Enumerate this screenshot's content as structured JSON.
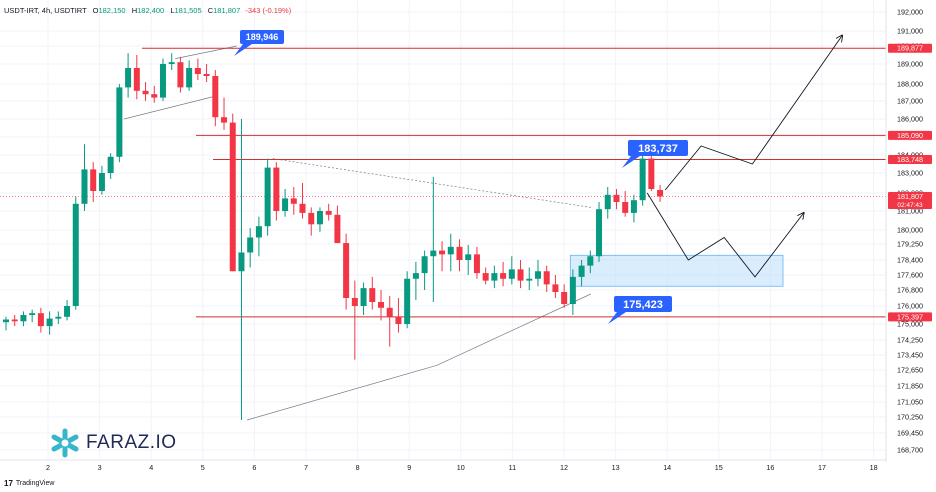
{
  "header": {
    "symbol": "USDT-IRT, 4h, USDTIRT",
    "open_label": "O",
    "open": "182,150",
    "high_label": "H",
    "high": "182,400",
    "low_label": "L",
    "low": "181,505",
    "close_label": "C",
    "close": "181,807",
    "change": "-343 (-0.19%)"
  },
  "brand": {
    "logo_text": "FARAZ.IO",
    "footer": "TradingView",
    "footer_mark": "17"
  },
  "colors": {
    "up": "#089981",
    "down": "#f23645",
    "line": "#d32f2f",
    "callout": "#2962ff",
    "zone": "#bbdefb"
  },
  "chart_data": {
    "type": "candlestick",
    "timeframe": "4h",
    "x_tick_labels": [
      "2",
      "3",
      "4",
      "5",
      "6",
      "7",
      "8",
      "9",
      "10",
      "11",
      "12",
      "13",
      "14",
      "15",
      "16",
      "17",
      "18"
    ],
    "y_tick_labels": [
      "192,000",
      "191,000",
      "190,000",
      "189,000",
      "188,000",
      "187,000",
      "186,000",
      "185,000",
      "184,000",
      "183,000",
      "182,000",
      "181,000",
      "180,000",
      "179,250",
      "178,400",
      "177,600",
      "176,800",
      "176,000",
      "175,000",
      "174,250",
      "173,450",
      "172,650",
      "171,850",
      "171,050",
      "170,250",
      "169,450",
      "168,700"
    ],
    "price_badges": [
      "189,877",
      "185,090",
      "183,748",
      "181,807",
      "175,397"
    ],
    "countdown": "02:47:43",
    "horizontal_levels": [
      189877,
      185090,
      183748,
      175397
    ],
    "callouts": [
      {
        "text": "189,946",
        "value": 189946
      },
      {
        "text": "183,737",
        "value": 183737
      },
      {
        "text": "175,423",
        "value": 175423
      }
    ],
    "zone": {
      "from_day": 11.0,
      "to_day": 16.25,
      "low": 177000,
      "high": 178650
    },
    "trendlines": [
      {
        "from": [
          4.7,
          170100
        ],
        "to": [
          8.4,
          172900
        ]
      },
      {
        "from": [
          8.4,
          172900
        ],
        "to": [
          11.4,
          176600
        ]
      },
      {
        "from": [
          5.2,
          183800
        ],
        "to": [
          11.4,
          181200
        ]
      },
      {
        "from": [
          3.3,
          189300
        ],
        "to": [
          4.5,
          190000
        ]
      },
      {
        "from": [
          2.3,
          186000
        ],
        "to": [
          4.1,
          187300
        ]
      }
    ],
    "scenario_paths": [
      [
        [
          12.85,
          182150
        ],
        [
          13.55,
          184500
        ],
        [
          14.55,
          183500
        ],
        [
          16.3,
          190700
        ]
      ],
      [
        [
          12.5,
          182000
        ],
        [
          13.3,
          178400
        ],
        [
          14.0,
          179600
        ],
        [
          14.6,
          177500
        ],
        [
          15.55,
          180900
        ]
      ]
    ],
    "candles": [
      {
        "t": 0.0,
        "o": 175100,
        "h": 175400,
        "l": 174700,
        "c": 175250
      },
      {
        "t": 0.17,
        "o": 175250,
        "h": 175500,
        "l": 174900,
        "c": 175150
      },
      {
        "t": 0.34,
        "o": 175150,
        "h": 175700,
        "l": 174900,
        "c": 175500
      },
      {
        "t": 0.51,
        "o": 175500,
        "h": 175800,
        "l": 175100,
        "c": 175600
      },
      {
        "t": 0.68,
        "o": 175600,
        "h": 175900,
        "l": 174600,
        "c": 174900
      },
      {
        "t": 0.85,
        "o": 174900,
        "h": 175700,
        "l": 174500,
        "c": 175300
      },
      {
        "t": 1.02,
        "o": 175300,
        "h": 175700,
        "l": 175000,
        "c": 175400
      },
      {
        "t": 1.19,
        "o": 175400,
        "h": 176300,
        "l": 175200,
        "c": 176000
      },
      {
        "t": 1.36,
        "o": 176000,
        "h": 181800,
        "l": 175800,
        "c": 181400
      },
      {
        "t": 1.53,
        "o": 181400,
        "h": 184600,
        "l": 181000,
        "c": 183200
      },
      {
        "t": 1.7,
        "o": 183200,
        "h": 183600,
        "l": 181500,
        "c": 182100
      },
      {
        "t": 1.87,
        "o": 182100,
        "h": 183400,
        "l": 181900,
        "c": 183000
      },
      {
        "t": 2.04,
        "o": 183000,
        "h": 184100,
        "l": 182700,
        "c": 183900
      },
      {
        "t": 2.21,
        "o": 183900,
        "h": 188000,
        "l": 183600,
        "c": 187800
      },
      {
        "t": 2.38,
        "o": 187800,
        "h": 189600,
        "l": 187200,
        "c": 188800
      },
      {
        "t": 2.55,
        "o": 188800,
        "h": 189500,
        "l": 187100,
        "c": 187600
      },
      {
        "t": 2.72,
        "o": 187600,
        "h": 188100,
        "l": 187000,
        "c": 187400
      },
      {
        "t": 2.89,
        "o": 187400,
        "h": 187900,
        "l": 186900,
        "c": 187200
      },
      {
        "t": 3.06,
        "o": 187200,
        "h": 189300,
        "l": 187000,
        "c": 189000
      },
      {
        "t": 3.23,
        "o": 189000,
        "h": 189600,
        "l": 188700,
        "c": 189100
      },
      {
        "t": 3.4,
        "o": 189100,
        "h": 189400,
        "l": 187500,
        "c": 187800
      },
      {
        "t": 3.57,
        "o": 187800,
        "h": 189200,
        "l": 187600,
        "c": 188800
      },
      {
        "t": 3.74,
        "o": 188800,
        "h": 189300,
        "l": 188200,
        "c": 188500
      },
      {
        "t": 3.91,
        "o": 188500,
        "h": 189000,
        "l": 188100,
        "c": 188400
      },
      {
        "t": 4.08,
        "o": 188400,
        "h": 188700,
        "l": 185600,
        "c": 186100
      },
      {
        "t": 4.25,
        "o": 186100,
        "h": 187200,
        "l": 185400,
        "c": 185800
      },
      {
        "t": 4.42,
        "o": 185800,
        "h": 186300,
        "l": 177800,
        "c": 177800
      },
      {
        "t": 4.59,
        "o": 177800,
        "h": 186000,
        "l": 170100,
        "c": 178800
      },
      {
        "t": 4.76,
        "o": 178800,
        "h": 180100,
        "l": 178000,
        "c": 179600
      },
      {
        "t": 4.93,
        "o": 179600,
        "h": 180700,
        "l": 178600,
        "c": 180200
      },
      {
        "t": 5.1,
        "o": 180200,
        "h": 183800,
        "l": 179700,
        "c": 183300
      },
      {
        "t": 5.27,
        "o": 183300,
        "h": 183600,
        "l": 180500,
        "c": 181000
      },
      {
        "t": 5.44,
        "o": 181000,
        "h": 182200,
        "l": 180700,
        "c": 181700
      },
      {
        "t": 5.61,
        "o": 181700,
        "h": 182300,
        "l": 180800,
        "c": 181400
      },
      {
        "t": 5.78,
        "o": 181400,
        "h": 182500,
        "l": 180600,
        "c": 180900
      },
      {
        "t": 5.95,
        "o": 180900,
        "h": 181200,
        "l": 179700,
        "c": 180300
      },
      {
        "t": 6.12,
        "o": 180300,
        "h": 181200,
        "l": 179900,
        "c": 181000
      },
      {
        "t": 6.29,
        "o": 181000,
        "h": 181400,
        "l": 180500,
        "c": 180800
      },
      {
        "t": 6.46,
        "o": 180800,
        "h": 181300,
        "l": 179300,
        "c": 179300
      },
      {
        "t": 6.63,
        "o": 179300,
        "h": 179800,
        "l": 175800,
        "c": 176400
      },
      {
        "t": 6.8,
        "o": 176400,
        "h": 177300,
        "l": 173200,
        "c": 176000
      },
      {
        "t": 6.97,
        "o": 176000,
        "h": 177200,
        "l": 175500,
        "c": 176900
      },
      {
        "t": 7.14,
        "o": 176900,
        "h": 177500,
        "l": 175800,
        "c": 176200
      },
      {
        "t": 7.31,
        "o": 176200,
        "h": 176800,
        "l": 175200,
        "c": 175900
      },
      {
        "t": 7.48,
        "o": 175900,
        "h": 176500,
        "l": 173900,
        "c": 175400
      },
      {
        "t": 7.65,
        "o": 175400,
        "h": 176400,
        "l": 174600,
        "c": 175000
      },
      {
        "t": 7.82,
        "o": 175000,
        "h": 177800,
        "l": 174800,
        "c": 177400
      },
      {
        "t": 7.99,
        "o": 177400,
        "h": 178300,
        "l": 176300,
        "c": 177700
      },
      {
        "t": 8.16,
        "o": 177700,
        "h": 178900,
        "l": 176800,
        "c": 178600
      },
      {
        "t": 8.33,
        "o": 178600,
        "h": 182800,
        "l": 176200,
        "c": 178900
      },
      {
        "t": 8.5,
        "o": 178900,
        "h": 179400,
        "l": 177800,
        "c": 178700
      },
      {
        "t": 8.67,
        "o": 178700,
        "h": 179800,
        "l": 177800,
        "c": 179100
      },
      {
        "t": 8.84,
        "o": 179100,
        "h": 179500,
        "l": 177800,
        "c": 178400
      },
      {
        "t": 9.01,
        "o": 178400,
        "h": 179200,
        "l": 177600,
        "c": 178700
      },
      {
        "t": 9.18,
        "o": 178700,
        "h": 179100,
        "l": 177400,
        "c": 177700
      },
      {
        "t": 9.35,
        "o": 177700,
        "h": 178000,
        "l": 177100,
        "c": 177300
      },
      {
        "t": 9.52,
        "o": 177300,
        "h": 178100,
        "l": 176900,
        "c": 177700
      },
      {
        "t": 9.69,
        "o": 177700,
        "h": 178300,
        "l": 177000,
        "c": 177400
      },
      {
        "t": 9.86,
        "o": 177400,
        "h": 178600,
        "l": 177100,
        "c": 177900
      },
      {
        "t": 10.03,
        "o": 177900,
        "h": 178400,
        "l": 176900,
        "c": 177300
      },
      {
        "t": 10.2,
        "o": 177300,
        "h": 178000,
        "l": 176800,
        "c": 177400
      },
      {
        "t": 10.37,
        "o": 177400,
        "h": 178400,
        "l": 177000,
        "c": 177800
      },
      {
        "t": 10.54,
        "o": 177800,
        "h": 178100,
        "l": 176700,
        "c": 177100
      },
      {
        "t": 10.71,
        "o": 177100,
        "h": 177600,
        "l": 176400,
        "c": 176700
      },
      {
        "t": 10.88,
        "o": 176700,
        "h": 177100,
        "l": 175900,
        "c": 176100
      },
      {
        "t": 11.05,
        "o": 176100,
        "h": 177900,
        "l": 175500,
        "c": 177500
      },
      {
        "t": 11.22,
        "o": 177500,
        "h": 178400,
        "l": 177000,
        "c": 178100
      },
      {
        "t": 11.39,
        "o": 178100,
        "h": 178900,
        "l": 177700,
        "c": 178600
      },
      {
        "t": 11.56,
        "o": 178600,
        "h": 181500,
        "l": 178300,
        "c": 181100
      },
      {
        "t": 11.73,
        "o": 181100,
        "h": 182300,
        "l": 180600,
        "c": 181900
      },
      {
        "t": 11.9,
        "o": 181900,
        "h": 182200,
        "l": 181100,
        "c": 181500
      },
      {
        "t": 12.07,
        "o": 181500,
        "h": 182100,
        "l": 180700,
        "c": 180900
      },
      {
        "t": 12.24,
        "o": 180900,
        "h": 181900,
        "l": 180400,
        "c": 181600
      },
      {
        "t": 12.41,
        "o": 181600,
        "h": 184500,
        "l": 181300,
        "c": 183800
      },
      {
        "t": 12.58,
        "o": 183800,
        "h": 184100,
        "l": 182100,
        "c": 182200
      },
      {
        "t": 12.75,
        "o": 182150,
        "h": 182400,
        "l": 181505,
        "c": 181807
      }
    ]
  }
}
